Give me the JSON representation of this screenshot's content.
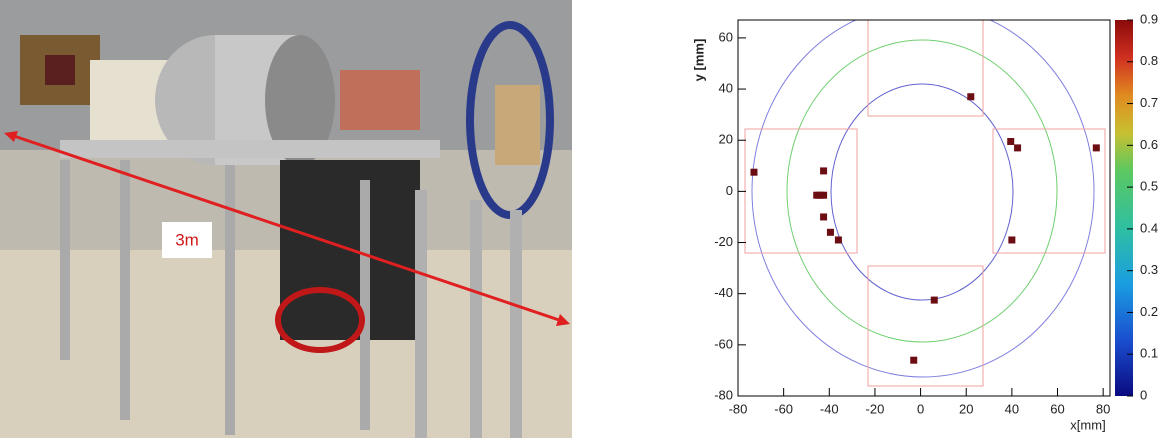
{
  "photo": {
    "label": "3m"
  },
  "chart_data": {
    "type": "scatter",
    "x": [
      -73,
      -42.5,
      -45.5,
      -44,
      -42.5,
      -42.5,
      -39.5,
      -36,
      22,
      39.5,
      42.5,
      77,
      40,
      6,
      -3
    ],
    "values": [
      7.5,
      8,
      -1.5,
      -1.5,
      -1.5,
      -10,
      -16,
      -19,
      37,
      19.5,
      17,
      17,
      -19,
      -42.5,
      -66
    ],
    "color": "#6b0d12",
    "xlim": [
      -80,
      83
    ],
    "ylim": [
      -80,
      67
    ],
    "xticks": [
      -80,
      -60,
      -40,
      -20,
      0,
      20,
      40,
      60,
      80
    ],
    "yticks": [
      -80,
      -60,
      -40,
      -20,
      0,
      20,
      40,
      60
    ],
    "xlabel": "x[mm]",
    "ylabel": "y [mm]",
    "colorbar": {
      "lim": [
        0,
        0.9
      ],
      "ticks": [
        0,
        0.1,
        0.2,
        0.3,
        0.4,
        0.5,
        0.6,
        0.7,
        0.8,
        0.9
      ]
    }
  }
}
